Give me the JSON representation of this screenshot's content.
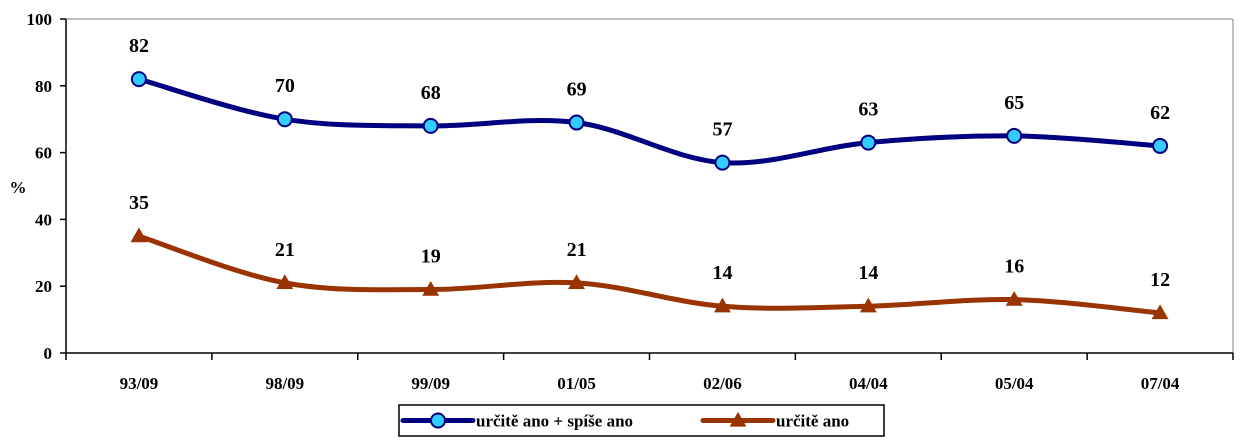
{
  "chart_data": {
    "type": "line",
    "categories": [
      "93/09",
      "98/09",
      "99/09",
      "01/05",
      "02/06",
      "04/04",
      "05/04",
      "07/04"
    ],
    "series": [
      {
        "name": "určitě ano + spíše ano",
        "values": [
          82,
          70,
          68,
          69,
          57,
          63,
          65,
          62
        ],
        "color": "#000080",
        "marker": "circle",
        "marker_color": "#33ccff"
      },
      {
        "name": "určitě ano",
        "values": [
          35,
          21,
          19,
          21,
          14,
          14,
          16,
          12
        ],
        "color": "#993300",
        "marker": "triangle",
        "marker_color": "#993300"
      }
    ],
    "ylabel": "%",
    "ylim": [
      0,
      100
    ],
    "yticks": [
      0,
      20,
      40,
      60,
      80,
      100
    ],
    "grid": false,
    "data_labels": true,
    "smooth": true,
    "legend_position": "bottom"
  }
}
